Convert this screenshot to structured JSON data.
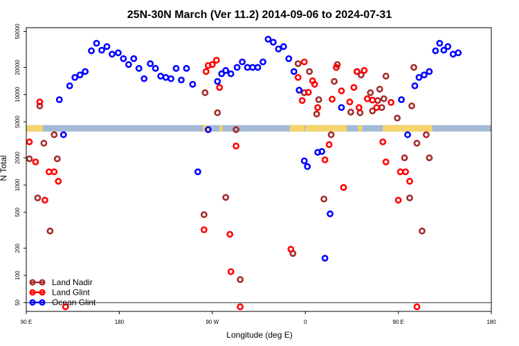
{
  "chart_data": {
    "type": "scatter",
    "title": "25N-30N March (Ver 11.2)   2014-09-06 to 2024-07-31",
    "xlabel": "Longitude (deg E)",
    "ylabel": "N Total",
    "x_ticks": [
      {
        "value": 90,
        "label": "90 E"
      },
      {
        "value": 180,
        "label": "180"
      },
      {
        "value": 270,
        "label": "90 W"
      },
      {
        "value": 360,
        "label": "0"
      },
      {
        "value": 450,
        "label": "90 E"
      },
      {
        "value": 540,
        "label": "180"
      }
    ],
    "xlim": [
      90,
      540
    ],
    "y_scale": "log",
    "y_ticks": [
      {
        "value": 50,
        "label": "50"
      },
      {
        "value": 100,
        "label": "100"
      },
      {
        "value": 200,
        "label": "200"
      },
      {
        "value": 500,
        "label": "500"
      },
      {
        "value": 1000,
        "label": "1000"
      },
      {
        "value": 2000,
        "label": "2000"
      },
      {
        "value": 5000,
        "label": "5000"
      },
      {
        "value": 10000,
        "label": "10000"
      },
      {
        "value": 20000,
        "label": "20000"
      },
      {
        "value": 50000,
        "label": "50000"
      }
    ],
    "ylim": [
      40,
      55000
    ],
    "reference_line": 50,
    "land_mask_band": {
      "y_low": 3900,
      "y_high": 4600,
      "land_color": "#f5d46b",
      "ocean_color": "#a3b9d6"
    },
    "land_segments": [
      [
        90,
        106
      ],
      [
        261,
        267
      ],
      [
        277,
        280
      ],
      [
        345,
        359
      ],
      [
        360,
        400
      ],
      [
        411,
        415
      ],
      [
        435,
        483
      ]
    ],
    "legend_position": "bottom-left",
    "grid": false,
    "series": [
      {
        "name": "Land Nadir",
        "color": "#a52a2a",
        "points": [
          [
            93,
            1950
          ],
          [
            101,
            720
          ],
          [
            103,
            7500
          ],
          [
            107,
            2900
          ],
          [
            113,
            310
          ],
          [
            117,
            3600
          ],
          [
            120,
            1950
          ],
          [
            262,
            470
          ],
          [
            263,
            10500
          ],
          [
            275,
            6300
          ],
          [
            283,
            730
          ],
          [
            293,
            4100
          ],
          [
            297,
            90
          ],
          [
            348,
            175
          ],
          [
            353,
            22000
          ],
          [
            359,
            10500
          ],
          [
            364,
            18000
          ],
          [
            371,
            6100
          ],
          [
            373,
            8800
          ],
          [
            378,
            700
          ],
          [
            385,
            3600
          ],
          [
            388,
            14000
          ],
          [
            391,
            21500
          ],
          [
            404,
            6400
          ],
          [
            414,
            16500
          ],
          [
            410,
            18000
          ],
          [
            413,
            6300
          ],
          [
            423,
            10500
          ],
          [
            425,
            6600
          ],
          [
            430,
            8600
          ],
          [
            432,
            11500
          ],
          [
            434,
            7200
          ],
          [
            436,
            9000
          ],
          [
            438,
            16000
          ],
          [
            449,
            5500
          ],
          [
            456,
            2000
          ],
          [
            461,
            720
          ],
          [
            463,
            7500
          ],
          [
            465,
            20000
          ],
          [
            468,
            2900
          ],
          [
            473,
            310
          ],
          [
            477,
            3600
          ],
          [
            480,
            2000
          ]
        ]
      },
      {
        "name": "Land Glint",
        "color": "#ff0000",
        "points": [
          [
            93,
            3000
          ],
          [
            99,
            1800
          ],
          [
            103,
            8300
          ],
          [
            108,
            680
          ],
          [
            112,
            1400
          ],
          [
            117,
            1400
          ],
          [
            121,
            1100
          ],
          [
            128,
            45
          ],
          [
            262,
            320
          ],
          [
            264,
            18000
          ],
          [
            266,
            21000
          ],
          [
            270,
            21500
          ],
          [
            274,
            24000
          ],
          [
            277,
            12000
          ],
          [
            287,
            285
          ],
          [
            288,
            110
          ],
          [
            293,
            2700
          ],
          [
            297,
            45
          ],
          [
            346,
            195
          ],
          [
            353,
            15500
          ],
          [
            357,
            8600
          ],
          [
            359,
            23000
          ],
          [
            363,
            10600
          ],
          [
            367,
            14200
          ],
          [
            369,
            13000
          ],
          [
            372,
            7200
          ],
          [
            379,
            1900
          ],
          [
            383,
            2800
          ],
          [
            386,
            8900
          ],
          [
            390,
            20000
          ],
          [
            395,
            11000
          ],
          [
            397,
            940
          ],
          [
            403,
            8300
          ],
          [
            407,
            12000
          ],
          [
            410,
            18000
          ],
          [
            412,
            7200
          ],
          [
            417,
            18500
          ],
          [
            420,
            9000
          ],
          [
            425,
            8700
          ],
          [
            429,
            7200
          ],
          [
            435,
            3000
          ],
          [
            438,
            1800
          ],
          [
            443,
            8200
          ],
          [
            450,
            680
          ],
          [
            452,
            1400
          ],
          [
            457,
            1400
          ],
          [
            461,
            1100
          ],
          [
            468,
            45
          ]
        ]
      },
      {
        "name": "Ocean Glint",
        "color": "#0000ff",
        "points": [
          [
            122,
            8800
          ],
          [
            126,
            3600
          ],
          [
            132,
            12500
          ],
          [
            137,
            15500
          ],
          [
            142,
            16500
          ],
          [
            147,
            18000
          ],
          [
            153,
            30500
          ],
          [
            158,
            37000
          ],
          [
            163,
            31000
          ],
          [
            168,
            34000
          ],
          [
            173,
            28000
          ],
          [
            179,
            29000
          ],
          [
            184,
            25000
          ],
          [
            189,
            21500
          ],
          [
            194,
            25000
          ],
          [
            199,
            19500
          ],
          [
            204,
            15000
          ],
          [
            210,
            22000
          ],
          [
            215,
            19500
          ],
          [
            220,
            16000
          ],
          [
            225,
            15500
          ],
          [
            230,
            15000
          ],
          [
            235,
            19500
          ],
          [
            240,
            14500
          ],
          [
            245,
            19500
          ],
          [
            251,
            13000
          ],
          [
            256,
            1400
          ],
          [
            266,
            4100
          ],
          [
            275,
            14000
          ],
          [
            279,
            17000
          ],
          [
            283,
            18500
          ],
          [
            288,
            17000
          ],
          [
            294,
            20000
          ],
          [
            299,
            23000
          ],
          [
            304,
            20000
          ],
          [
            309,
            20000
          ],
          [
            314,
            20000
          ],
          [
            319,
            23000
          ],
          [
            324,
            41000
          ],
          [
            329,
            38000
          ],
          [
            334,
            32000
          ],
          [
            339,
            34000
          ],
          [
            344,
            25000
          ],
          [
            349,
            18000
          ],
          [
            354,
            11200
          ],
          [
            359,
            1850
          ],
          [
            362,
            1600
          ],
          [
            372,
            2300
          ],
          [
            376,
            2350
          ],
          [
            379,
            155
          ],
          [
            384,
            480
          ],
          [
            395,
            7200
          ],
          [
            453,
            8800
          ],
          [
            459,
            3600
          ],
          [
            466,
            12500
          ],
          [
            470,
            15500
          ],
          [
            475,
            16500
          ],
          [
            480,
            18000
          ],
          [
            486,
            30500
          ],
          [
            490,
            37000
          ],
          [
            494,
            31000
          ],
          [
            498,
            34000
          ],
          [
            503,
            28000
          ],
          [
            508,
            29000
          ]
        ]
      }
    ]
  }
}
